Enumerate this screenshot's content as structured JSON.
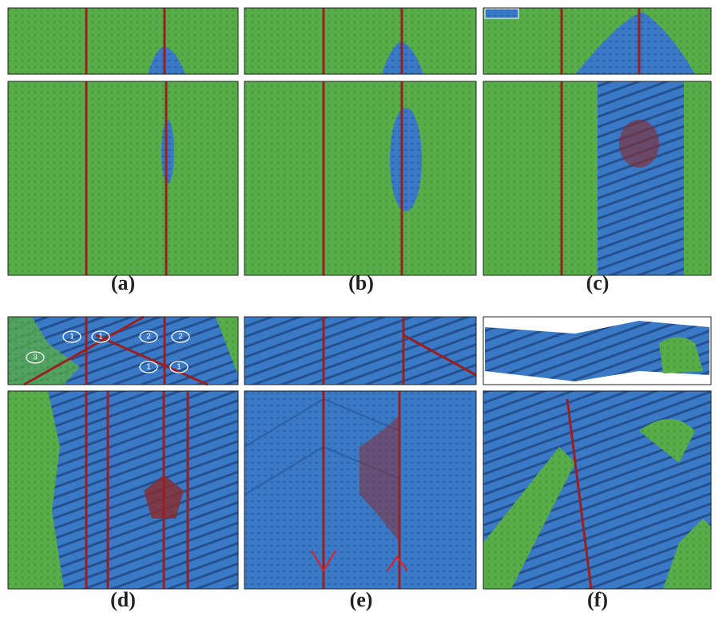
{
  "panels": [
    {
      "label": "(a)"
    },
    {
      "label": "(b)"
    },
    {
      "label": "(c)"
    },
    {
      "label": "(d)"
    },
    {
      "label": "(e)"
    },
    {
      "label": "(f)"
    }
  ],
  "annotations": [
    {
      "text": "3"
    },
    {
      "text": "1"
    },
    {
      "text": "1"
    },
    {
      "text": "2"
    },
    {
      "text": "2"
    },
    {
      "text": "1"
    },
    {
      "text": "1"
    }
  ]
}
